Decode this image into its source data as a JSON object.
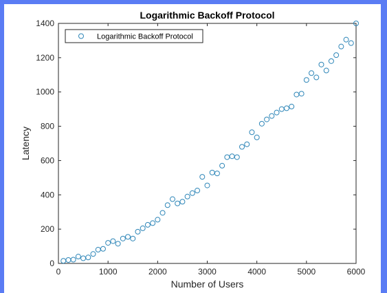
{
  "colors": {
    "frame": "#5a7cf4",
    "marker": "#2e86b8",
    "axis": "#262626"
  },
  "chart_data": {
    "type": "scatter",
    "title": "Logarithmic Backoff Protocol",
    "xlabel": "Number of Users",
    "ylabel": "Latency",
    "xlim": [
      0,
      6000
    ],
    "ylim": [
      0,
      1400
    ],
    "xticks": [
      0,
      1000,
      2000,
      3000,
      4000,
      5000,
      6000
    ],
    "yticks": [
      0,
      200,
      400,
      600,
      800,
      1000,
      1200,
      1400
    ],
    "grid": false,
    "legend": {
      "position": "top-left",
      "entries": [
        "Logarithmic Backoff Protocol"
      ]
    },
    "series": [
      {
        "name": "Logarithmic Backoff Protocol",
        "marker": "open-circle",
        "x": [
          100,
          200,
          300,
          400,
          500,
          600,
          700,
          800,
          900,
          1000,
          1100,
          1200,
          1300,
          1400,
          1500,
          1600,
          1700,
          1800,
          1900,
          2000,
          2100,
          2200,
          2300,
          2400,
          2500,
          2600,
          2700,
          2800,
          2900,
          3000,
          3100,
          3200,
          3300,
          3400,
          3500,
          3600,
          3700,
          3800,
          3900,
          4000,
          4100,
          4200,
          4300,
          4400,
          4500,
          4600,
          4700,
          4800,
          4900,
          5000,
          5100,
          5200,
          5300,
          5400,
          5500,
          5600,
          5700,
          5800,
          5900,
          6000
        ],
        "y": [
          15,
          20,
          22,
          40,
          30,
          35,
          55,
          80,
          85,
          120,
          130,
          115,
          145,
          155,
          145,
          185,
          205,
          225,
          235,
          255,
          295,
          340,
          375,
          350,
          360,
          390,
          410,
          425,
          505,
          455,
          530,
          525,
          570,
          620,
          625,
          620,
          680,
          695,
          765,
          735,
          815,
          840,
          860,
          880,
          900,
          905,
          915,
          985,
          990,
          1070,
          1110,
          1085,
          1160,
          1125,
          1180,
          1215,
          1265,
          1305,
          1285,
          1400
        ]
      }
    ]
  }
}
